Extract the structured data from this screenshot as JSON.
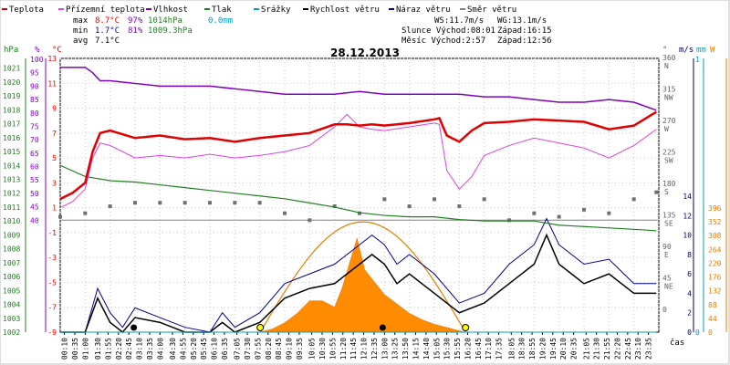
{
  "chart_data": {
    "type": "line",
    "title": "28.12.2013",
    "legend": [
      {
        "label": "Teplota",
        "color": "#e00000"
      },
      {
        "label": "Přízemní teplota",
        "color": "#e040e0"
      },
      {
        "label": "Vlhkost",
        "color": "#8000c0"
      },
      {
        "label": "Tlak",
        "color": "#208020"
      },
      {
        "label": "Srážky",
        "color": "#00a0c0"
      },
      {
        "label": "Rychlost větru",
        "color": "#000000"
      },
      {
        "label": "Náraz větru",
        "color": "#00008c"
      },
      {
        "label": "Směr větru",
        "color": "#808080"
      }
    ],
    "stats": {
      "max": {
        "label": "max",
        "temp": "8.7°C",
        "hum": "97%",
        "press": "1014hPa",
        "rain": "0.0mm"
      },
      "min": {
        "label": "min",
        "temp": "1.7°C",
        "hum": "81%",
        "press": "1009.3hPa"
      },
      "avg": {
        "label": "avg",
        "temp": "7.1°C"
      }
    },
    "info": {
      "ws": "WS:11.7m/s",
      "wg": "WG:13.1m/s",
      "sun": "Slunce Východ:08:01",
      "sun_set": "Západ:16:15",
      "moon": "Měsíc  Východ:2:57",
      "moon_set": "Západ:12:56"
    },
    "axis_units": {
      "hpa": "hPa",
      "pct": "%",
      "degc": "°C",
      "deg": "°",
      "ms": "m/s",
      "mm": "mm",
      "wm2": "W",
      "time": "čas"
    },
    "axes": {
      "pressure": {
        "ticks": [
          1002,
          1003,
          1004,
          1005,
          1006,
          1007,
          1008,
          1009,
          1010,
          1011,
          1012,
          1013,
          1014,
          1015,
          1016,
          1017,
          1018,
          1019,
          1020,
          1021
        ],
        "color": "#208020"
      },
      "humidity": {
        "ticks": [
          40,
          45,
          50,
          55,
          60,
          65,
          70,
          75,
          80,
          85,
          90,
          95,
          100
        ],
        "color": "#8000c0"
      },
      "temperature": {
        "ticks": [
          -9,
          -7,
          -5,
          -3,
          -1,
          1,
          3,
          5,
          7,
          9,
          11,
          13
        ],
        "color": "#e00000"
      },
      "direction": {
        "ticks": [
          {
            "v": "360",
            "d": "N"
          },
          {
            "v": "315",
            "d": "NW"
          },
          {
            "v": "270",
            "d": "W"
          },
          {
            "v": "225",
            "d": "SW"
          },
          {
            "v": "180",
            "d": "S"
          },
          {
            "v": "135",
            "d": "SE"
          },
          {
            "v": "90",
            "d": "E"
          },
          {
            "v": "45",
            "d": "NE"
          },
          {
            "v": "0",
            "d": ""
          }
        ],
        "color": "#606060"
      },
      "wind": {
        "ticks": [
          0,
          2,
          4,
          6,
          8,
          10,
          12,
          14
        ],
        "color": "#000060"
      },
      "rain": {
        "ticks": [
          0,
          1
        ],
        "color": "#00a0c0"
      },
      "solar": {
        "ticks": [
          0,
          44,
          88,
          132,
          176,
          220,
          264,
          308,
          352,
          396
        ],
        "color": "#e08000"
      },
      "time_labels": [
        "00:10",
        "00:35",
        "01:00",
        "01:30",
        "01:55",
        "02:20",
        "02:45",
        "03:10",
        "03:35",
        "04:00",
        "04:30",
        "04:55",
        "05:20",
        "05:45",
        "06:10",
        "06:35",
        "07:05",
        "07:30",
        "07:55",
        "08:20",
        "08:45",
        "09:10",
        "09:35",
        "10:05",
        "10:30",
        "10:55",
        "11:20",
        "11:45",
        "12:10",
        "12:35",
        "13:00",
        "13:25",
        "13:50",
        "14:15",
        "14:40",
        "15:05",
        "15:30",
        "15:55",
        "16:20",
        "16:45",
        "17:10",
        "17:35",
        "18:05",
        "18:30",
        "18:55",
        "19:20",
        "19:45",
        "20:10",
        "20:35",
        "21:05",
        "21:30",
        "21:55",
        "22:20",
        "22:45",
        "23:10",
        "23:35"
      ]
    },
    "series": [
      {
        "name": "Teplota",
        "unit": "°C",
        "x_hours": [
          0,
          0.5,
          1,
          1.3,
          1.6,
          2,
          3,
          4,
          5,
          6,
          7,
          8,
          9,
          10,
          11,
          11.5,
          12,
          12.5,
          13,
          14,
          15,
          15.2,
          15.5,
          16,
          16.5,
          17,
          18,
          19,
          20,
          21,
          22,
          23,
          23.9
        ],
        "values": [
          1.7,
          2.2,
          3.0,
          5.5,
          7.0,
          7.2,
          6.6,
          6.8,
          6.5,
          6.6,
          6.3,
          6.6,
          6.8,
          7.0,
          7.7,
          7.7,
          7.6,
          7.7,
          7.6,
          7.8,
          8.1,
          8.2,
          6.8,
          6.3,
          7.2,
          7.8,
          7.9,
          8.1,
          8.0,
          7.9,
          7.3,
          7.6,
          8.7
        ]
      },
      {
        "name": "Přízemní teplota",
        "unit": "°C",
        "x_hours": [
          0,
          0.5,
          1,
          1.3,
          1.6,
          2,
          3,
          4,
          5,
          6,
          7,
          8,
          9,
          10,
          11,
          11.5,
          12,
          12.5,
          13,
          14,
          15,
          15.2,
          15.5,
          16,
          16.5,
          17,
          18,
          19,
          20,
          21,
          22,
          23,
          23.9
        ],
        "values": [
          1.0,
          1.5,
          2.5,
          5.0,
          6.2,
          6.0,
          5.0,
          5.2,
          5.0,
          5.3,
          5.0,
          5.2,
          5.5,
          6.0,
          7.5,
          8.5,
          7.5,
          7.3,
          7.2,
          7.5,
          7.8,
          7.7,
          4.0,
          2.5,
          3.5,
          5.2,
          6.0,
          6.6,
          6.2,
          5.8,
          5.0,
          6.0,
          7.3
        ]
      },
      {
        "name": "Vlhkost",
        "unit": "%",
        "x_hours": [
          0,
          0.5,
          1,
          1.3,
          1.6,
          2,
          3,
          4,
          5,
          6,
          7,
          8,
          9,
          10,
          11,
          12,
          13,
          14,
          15,
          16,
          17,
          18,
          19,
          20,
          21,
          22,
          23,
          23.9
        ],
        "values": [
          97,
          97,
          97,
          95,
          92,
          92,
          91,
          90,
          90,
          90,
          89,
          88,
          87,
          87,
          87,
          88,
          87,
          87,
          87,
          87,
          86,
          86,
          85,
          84,
          84,
          85,
          84,
          81
        ]
      },
      {
        "name": "Tlak",
        "unit": "hPa",
        "x_hours": [
          0,
          1,
          2,
          3,
          4,
          5,
          6,
          7,
          8,
          9,
          10,
          11,
          12,
          13,
          14,
          15,
          16,
          17,
          18,
          19,
          20,
          21,
          22,
          23,
          23.9
        ],
        "values": [
          1014,
          1013.2,
          1012.9,
          1012.8,
          1012.6,
          1012.4,
          1012.2,
          1012.0,
          1011.8,
          1011.6,
          1011.3,
          1011.0,
          1010.6,
          1010.4,
          1010.3,
          1010.3,
          1010.1,
          1010.0,
          1010.0,
          1010.0,
          1009.7,
          1009.6,
          1009.5,
          1009.4,
          1009.3
        ]
      },
      {
        "name": "Rychlost větru",
        "unit": "m/s",
        "x_hours": [
          0,
          1,
          1.5,
          2,
          2.5,
          3,
          4,
          5,
          6,
          6.5,
          7,
          8,
          9,
          10,
          11,
          11.5,
          12,
          12.5,
          13,
          13.5,
          14,
          15,
          16,
          17,
          18,
          19,
          19.5,
          20,
          21,
          22,
          23,
          23.9
        ],
        "values": [
          0,
          0,
          3.5,
          1,
          0,
          1.5,
          1,
          0,
          0,
          1,
          0,
          1,
          3.5,
          4.5,
          5,
          6,
          7,
          8,
          7,
          5,
          6,
          4,
          2,
          3,
          5,
          7,
          10,
          7,
          5,
          6,
          4,
          4
        ]
      },
      {
        "name": "Náraz větru",
        "unit": "m/s",
        "x_hours": [
          0,
          1,
          1.5,
          2,
          2.5,
          3,
          4,
          5,
          6,
          6.5,
          7,
          8,
          9,
          10,
          11,
          11.5,
          12,
          12.5,
          13,
          13.5,
          14,
          15,
          16,
          17,
          18,
          19,
          19.5,
          20,
          21,
          22,
          23,
          23.9
        ],
        "values": [
          0,
          0,
          4.5,
          2,
          0.5,
          2.5,
          1.5,
          0.5,
          0,
          2,
          0.5,
          2,
          5,
          6,
          7,
          8,
          9,
          10,
          9,
          7,
          8,
          6,
          3,
          4,
          7,
          9,
          11.7,
          9,
          7,
          7.5,
          5,
          5
        ]
      },
      {
        "name": "Směr větru",
        "unit": "°",
        "x_hours": [
          0,
          1,
          2,
          3,
          4,
          5,
          6,
          7,
          8,
          9,
          10,
          11,
          12,
          13,
          14,
          15,
          16,
          17,
          18,
          19,
          20,
          21,
          22,
          23,
          23.9
        ],
        "values": [
          135,
          140,
          150,
          155,
          155,
          155,
          155,
          155,
          155,
          140,
          130,
          150,
          140,
          160,
          150,
          160,
          150,
          160,
          130,
          140,
          135,
          145,
          140,
          160,
          170
        ]
      },
      {
        "name": "Srážky",
        "unit": "mm",
        "x_hours": [
          0,
          23.9
        ],
        "values": [
          0,
          0
        ]
      }
    ],
    "solar": {
      "unit": "W",
      "x_hours": [
        8.0,
        8.5,
        9,
        9.5,
        10,
        10.5,
        11,
        11.3,
        11.6,
        11.9,
        12.2,
        12.5,
        13,
        13.5,
        14,
        14.5,
        15,
        15.5,
        16.2
      ],
      "values": [
        0,
        10,
        30,
        60,
        100,
        100,
        80,
        140,
        220,
        300,
        200,
        170,
        120,
        90,
        60,
        40,
        25,
        15,
        0
      ],
      "clear_sky_peak": 352,
      "sunrise_hour": 8.02,
      "sunset_hour": 16.25
    },
    "ylim_temp": [
      -9,
      13
    ]
  }
}
